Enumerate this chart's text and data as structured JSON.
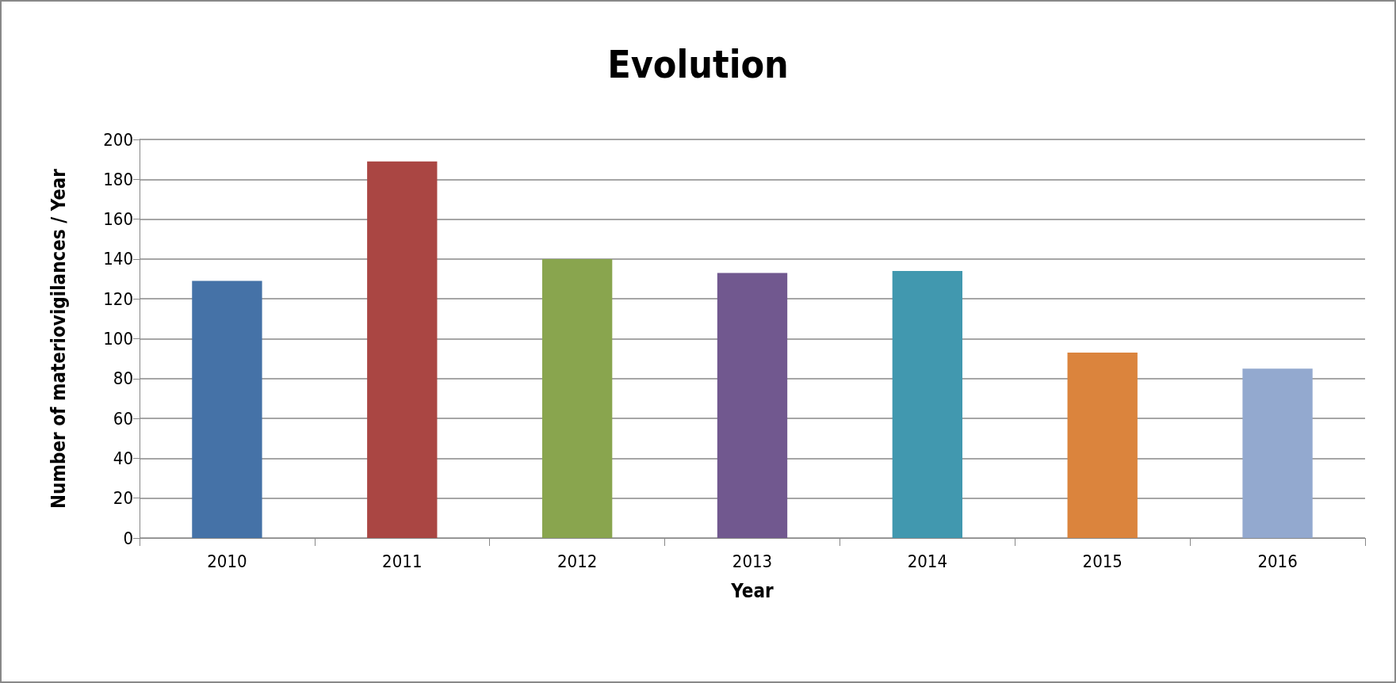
{
  "chart_data": {
    "type": "bar",
    "title": "Evolution",
    "xlabel": "Year",
    "ylabel": "Number of materiovigilances / Year",
    "categories": [
      "2010",
      "2011",
      "2012",
      "2013",
      "2014",
      "2015",
      "2016"
    ],
    "values": [
      129,
      189,
      140,
      133,
      134,
      93,
      85
    ],
    "colors": [
      "#4572a7",
      "#aa4643",
      "#89a54e",
      "#71588f",
      "#4198af",
      "#db843d",
      "#93a9cf"
    ],
    "ylim": [
      0,
      200
    ],
    "yticks": [
      0,
      20,
      40,
      60,
      80,
      100,
      120,
      140,
      160,
      180,
      200
    ],
    "grid": "y"
  }
}
